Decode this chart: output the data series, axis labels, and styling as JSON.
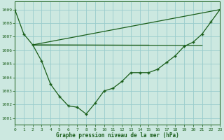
{
  "x": [
    0,
    1,
    2,
    3,
    4,
    5,
    6,
    7,
    8,
    9,
    10,
    11,
    12,
    13,
    14,
    15,
    16,
    17,
    18,
    19,
    20,
    21,
    22,
    23
  ],
  "pressure": [
    1009.0,
    1007.2,
    1006.4,
    1005.2,
    1003.5,
    1002.6,
    1001.9,
    1001.8,
    1001.3,
    1002.1,
    1003.0,
    1003.2,
    1003.7,
    1004.35,
    1004.35,
    1004.35,
    1004.6,
    1005.1,
    1005.6,
    1006.3,
    1006.6,
    1007.2,
    1008.1,
    1009.0
  ],
  "refline1_x": [
    2,
    21
  ],
  "refline1_y": [
    1006.4,
    1006.35
  ],
  "refline2_x": [
    2,
    15
  ],
  "refline2_y": [
    1006.4,
    1006.4
  ],
  "refline3_x": [
    2,
    23
  ],
  "refline3_y": [
    1006.4,
    1009.0
  ],
  "bg_color": "#cce8e0",
  "line_color": "#1a5e1a",
  "grid_color": "#99cccc",
  "xlabel": "Graphe pression niveau de la mer (hPa)",
  "ylabel_ticks": [
    1001,
    1002,
    1003,
    1004,
    1005,
    1006,
    1007,
    1008,
    1009
  ],
  "ylim": [
    1000.5,
    1009.6
  ],
  "xlim": [
    0,
    23
  ]
}
